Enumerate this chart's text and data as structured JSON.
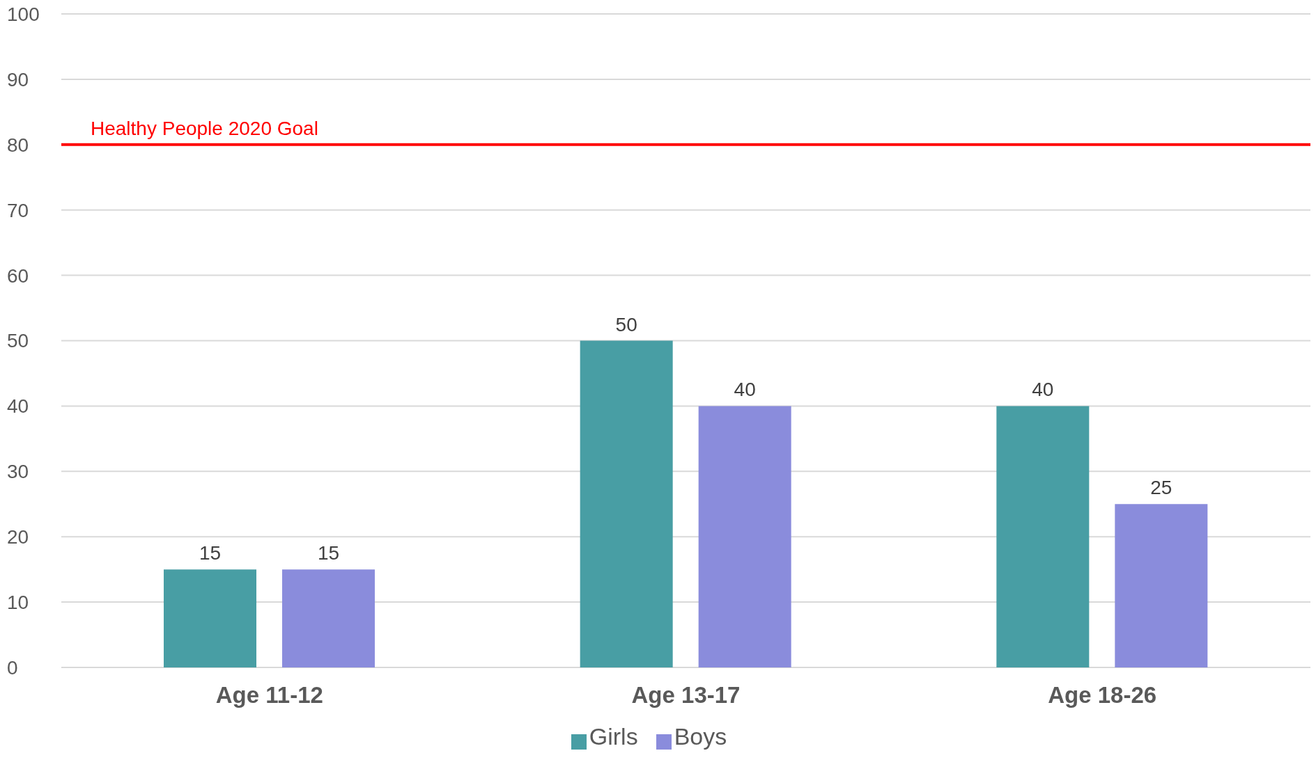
{
  "chart_data": {
    "type": "bar",
    "categories": [
      "Age 11-12",
      "Age 13-17",
      "Age 18-26"
    ],
    "series": [
      {
        "name": "Girls",
        "color": "#489ea4",
        "values": [
          15,
          50,
          40
        ]
      },
      {
        "name": "Boys",
        "color": "#8a8cdc",
        "values": [
          15,
          40,
          25
        ]
      }
    ],
    "ylim": [
      0,
      100
    ],
    "yticks": [
      0,
      10,
      20,
      30,
      40,
      50,
      60,
      70,
      80,
      90,
      100
    ],
    "ref_lines": [
      {
        "axis": "y",
        "value": 80,
        "label": "Healthy People 2020 Goal",
        "color": "#ff0000"
      }
    ],
    "data_labels": true,
    "grid": "y",
    "legend": "bottom"
  }
}
